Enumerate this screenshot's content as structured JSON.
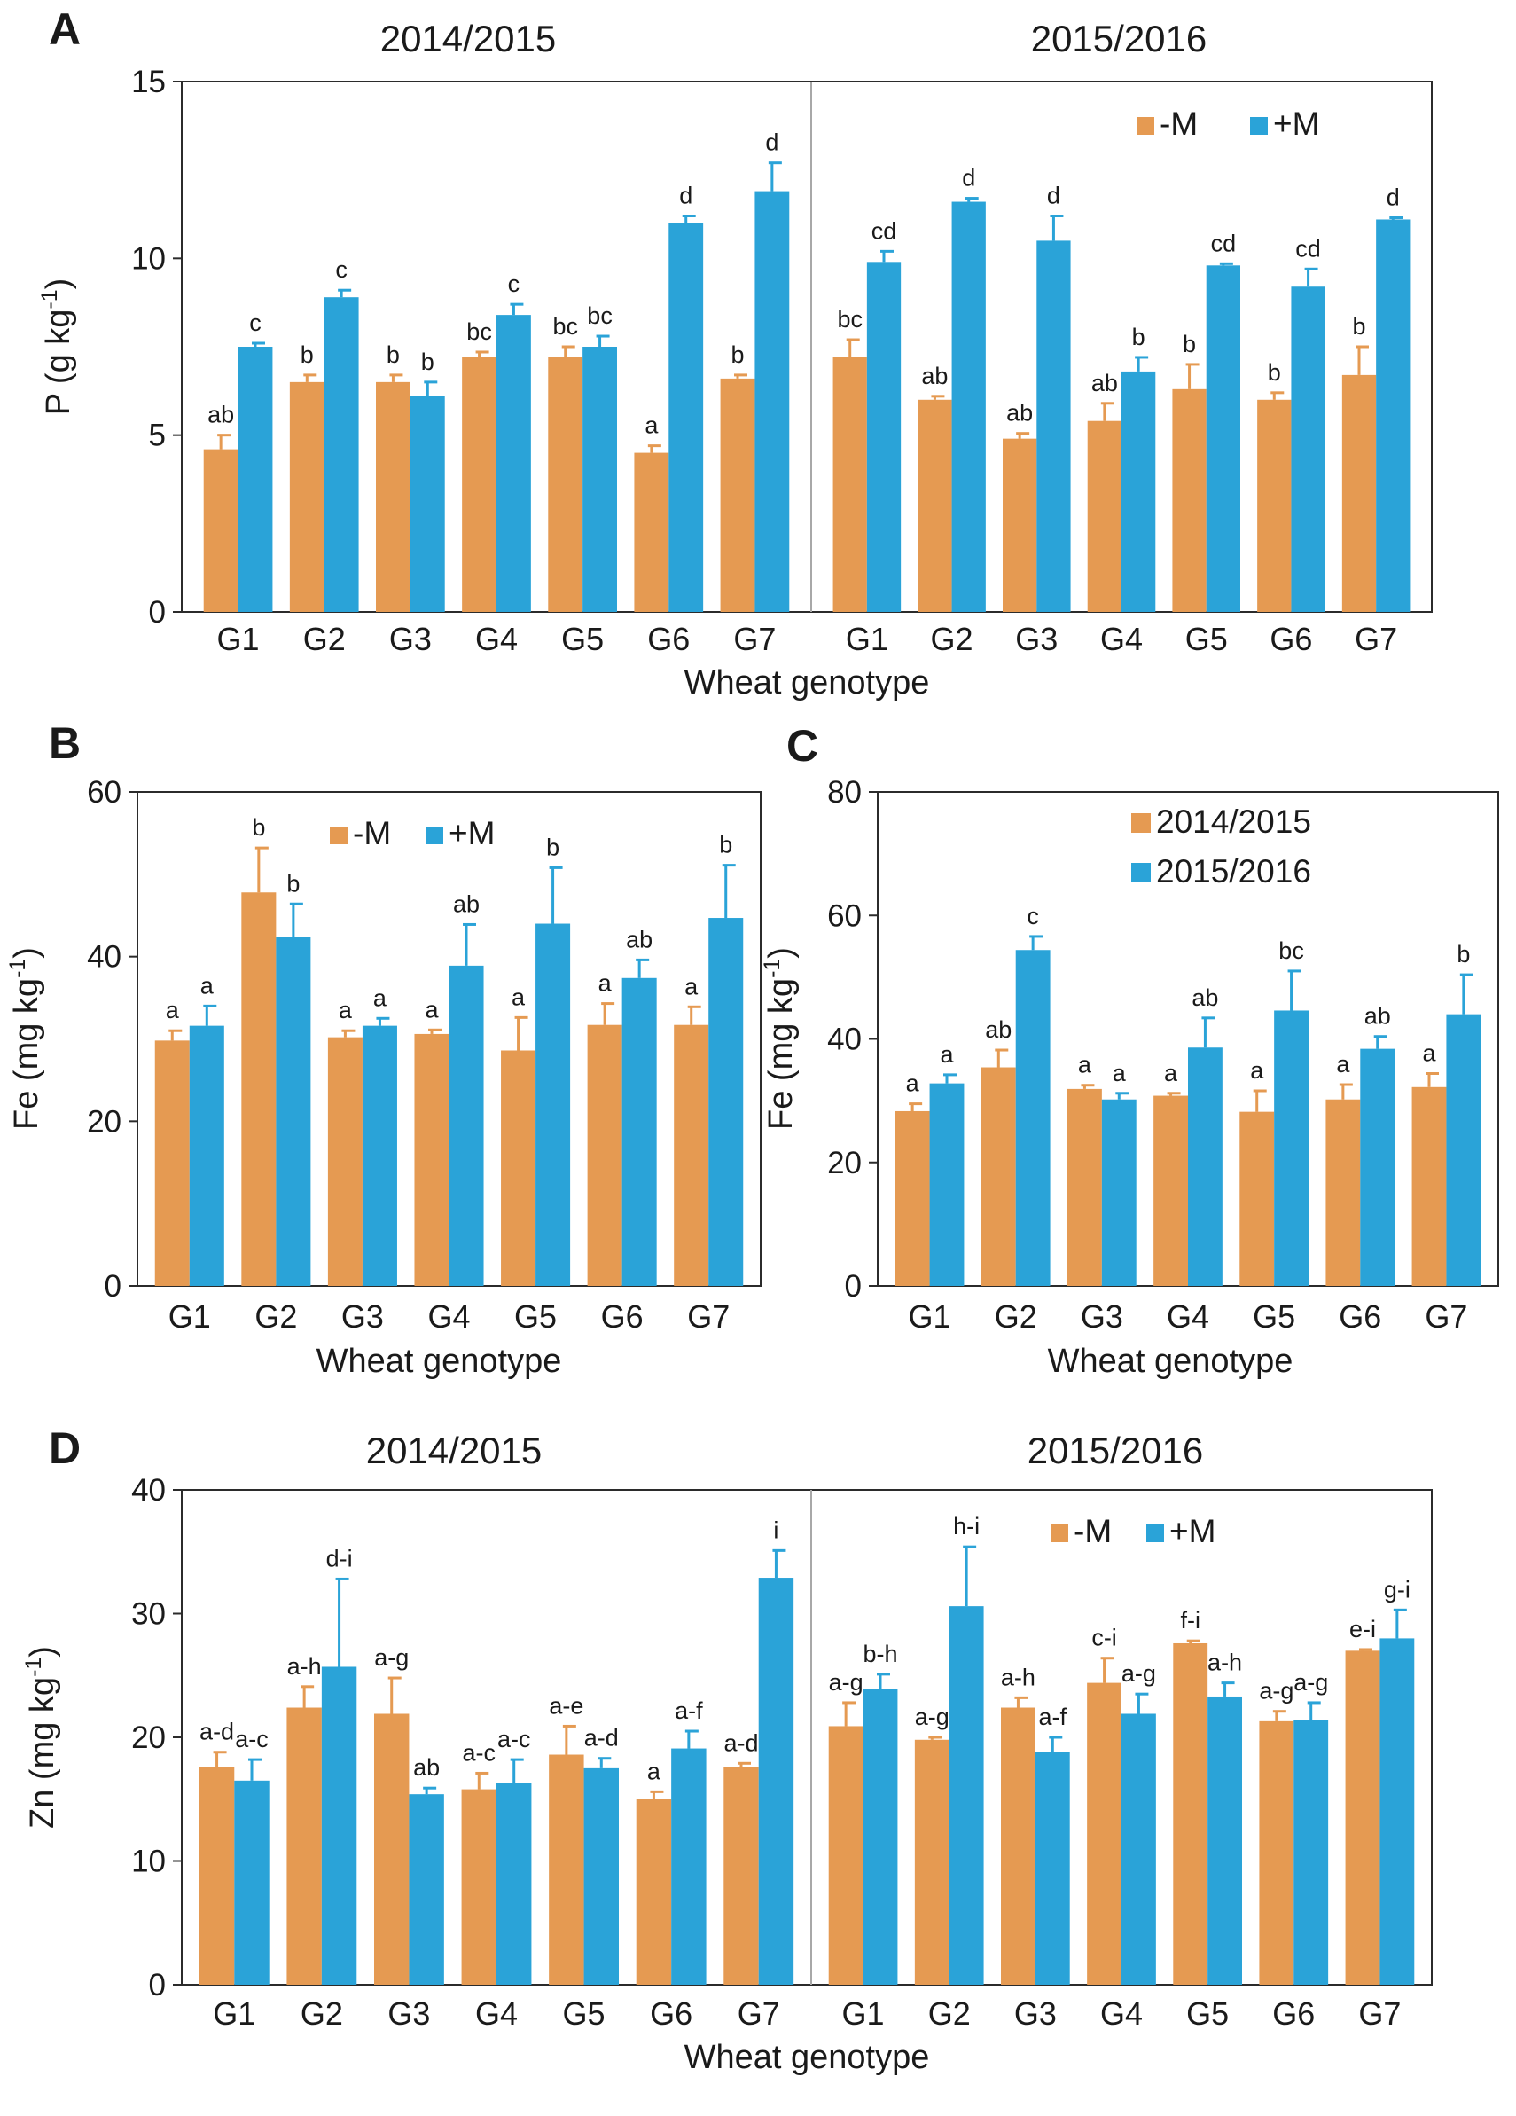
{
  "colors": {
    "minus_m": "#e59a52",
    "plus_m": "#2aa3d8",
    "axis": "#2b2b2b",
    "divider": "#a8a8a8"
  },
  "chart_data": [
    {
      "id": "A",
      "type": "bar",
      "panel_label": "A",
      "ylabel_main": "P (g kg",
      "ylabel_sup": "-1",
      "ylabel_tail": ")",
      "xlabel": "Wheat genotype",
      "ylim": [
        0,
        15
      ],
      "yticks": [
        "0",
        "5",
        "10",
        "15"
      ],
      "legend": "top-right",
      "legend_labels": [
        "-M",
        "+M"
      ],
      "groups": [
        {
          "subtitle": "2014/2015",
          "categories": [
            "G1",
            "G2",
            "G3",
            "G4",
            "G5",
            "G6",
            "G7"
          ],
          "series": [
            {
              "name": "-M",
              "values": [
                4.6,
                6.5,
                6.5,
                7.2,
                7.2,
                4.5,
                6.6
              ],
              "errors": [
                0.4,
                0.2,
                0.2,
                0.15,
                0.3,
                0.2,
                0.1
              ],
              "labels": [
                "ab",
                "b",
                "b",
                "bc",
                "bc",
                "a",
                "b"
              ]
            },
            {
              "name": "+M",
              "values": [
                7.5,
                8.9,
                6.1,
                8.4,
                7.5,
                11.0,
                11.9
              ],
              "errors": [
                0.1,
                0.2,
                0.4,
                0.3,
                0.3,
                0.2,
                0.8
              ],
              "labels": [
                "c",
                "c",
                "b",
                "c",
                "bc",
                "d",
                "d"
              ]
            }
          ]
        },
        {
          "subtitle": "2015/2016",
          "categories": [
            "G1",
            "G2",
            "G3",
            "G4",
            "G5",
            "G6",
            "G7"
          ],
          "series": [
            {
              "name": "-M",
              "values": [
                7.2,
                6.0,
                4.9,
                5.4,
                6.3,
                6.0,
                6.7
              ],
              "errors": [
                0.5,
                0.1,
                0.15,
                0.5,
                0.7,
                0.2,
                0.8
              ],
              "labels": [
                "bc",
                "ab",
                "ab",
                "ab",
                "b",
                "b",
                "b"
              ]
            },
            {
              "name": "+M",
              "values": [
                9.9,
                11.6,
                10.5,
                6.8,
                9.8,
                9.2,
                11.1
              ],
              "errors": [
                0.3,
                0.1,
                0.7,
                0.4,
                0.05,
                0.5,
                0.05
              ],
              "labels": [
                "cd",
                "d",
                "d",
                "b",
                "cd",
                "cd",
                "d"
              ]
            }
          ]
        }
      ]
    },
    {
      "id": "B",
      "type": "bar",
      "panel_label": "B",
      "ylabel_main": "Fe (mg kg",
      "ylabel_sup": "-1",
      "ylabel_tail": ")",
      "xlabel": "Wheat genotype",
      "ylim": [
        0,
        60
      ],
      "yticks": [
        "0",
        "20",
        "40",
        "60"
      ],
      "legend": "top-center",
      "legend_labels": [
        "-M",
        "+M"
      ],
      "groups": [
        {
          "subtitle": "",
          "categories": [
            "G1",
            "G2",
            "G3",
            "G4",
            "G5",
            "G6",
            "G7"
          ],
          "series": [
            {
              "name": "-M",
              "values": [
                29.8,
                47.8,
                30.2,
                30.6,
                28.6,
                31.7,
                31.7
              ],
              "errors": [
                1.2,
                5.4,
                0.8,
                0.5,
                4.0,
                2.6,
                2.2
              ],
              "labels": [
                "a",
                "b",
                "a",
                "a",
                "a",
                "a",
                "a"
              ]
            },
            {
              "name": "+M",
              "values": [
                31.6,
                42.4,
                31.6,
                38.9,
                44.0,
                37.4,
                44.7
              ],
              "errors": [
                2.4,
                4.0,
                0.9,
                5.0,
                6.8,
                2.2,
                6.4
              ],
              "labels": [
                "a",
                "b",
                "a",
                "ab",
                "b",
                "ab",
                "b"
              ]
            }
          ]
        }
      ]
    },
    {
      "id": "C",
      "type": "bar",
      "panel_label": "C",
      "ylabel_main": "Fe (mg kg",
      "ylabel_sup": "-1",
      "ylabel_tail": ")",
      "xlabel": "Wheat genotype",
      "ylim": [
        0,
        80
      ],
      "yticks": [
        "0",
        "20",
        "40",
        "60",
        "80"
      ],
      "legend": "top-center",
      "legend_labels": [
        "2014/2015",
        "2015/2016"
      ],
      "groups": [
        {
          "subtitle": "",
          "categories": [
            "G1",
            "G2",
            "G3",
            "G4",
            "G5",
            "G6",
            "G7"
          ],
          "series": [
            {
              "name": "2014/2015",
              "values": [
                28.3,
                35.4,
                31.9,
                30.8,
                28.2,
                30.2,
                32.2
              ],
              "errors": [
                1.2,
                2.8,
                0.6,
                0.4,
                3.4,
                2.4,
                2.2
              ],
              "labels": [
                "a",
                "ab",
                "a",
                "a",
                "a",
                "a",
                "a"
              ]
            },
            {
              "name": "2015/2016",
              "values": [
                32.8,
                54.4,
                30.2,
                38.6,
                44.6,
                38.4,
                44.0
              ],
              "errors": [
                1.4,
                2.2,
                1.0,
                4.8,
                6.4,
                2.0,
                6.4
              ],
              "labels": [
                "a",
                "c",
                "a",
                "ab",
                "bc",
                "ab",
                "b"
              ]
            }
          ]
        }
      ]
    },
    {
      "id": "D",
      "type": "bar",
      "panel_label": "D",
      "ylabel_main": "Zn (mg kg",
      "ylabel_sup": "-1",
      "ylabel_tail": ")",
      "xlabel": "Wheat genotype",
      "ylim": [
        0,
        40
      ],
      "yticks": [
        "0",
        "10",
        "20",
        "30",
        "40"
      ],
      "legend": "top-right",
      "legend_labels": [
        "-M",
        "+M"
      ],
      "groups": [
        {
          "subtitle": "2014/2015",
          "categories": [
            "G1",
            "G2",
            "G3",
            "G4",
            "G5",
            "G6",
            "G7"
          ],
          "series": [
            {
              "name": "-M",
              "values": [
                17.6,
                22.4,
                21.9,
                15.8,
                18.6,
                15.0,
                17.6
              ],
              "errors": [
                1.2,
                1.7,
                2.9,
                1.3,
                2.3,
                0.6,
                0.3
              ],
              "labels": [
                "a-d",
                "a-h",
                "a-g",
                "a-c",
                "a-e",
                "a",
                "a-d"
              ]
            },
            {
              "name": "+M",
              "values": [
                16.5,
                25.7,
                15.4,
                16.3,
                17.5,
                19.1,
                32.9
              ],
              "errors": [
                1.7,
                7.1,
                0.5,
                1.9,
                0.8,
                1.4,
                2.2
              ],
              "labels": [
                "a-c",
                "d-i",
                "ab",
                "a-c",
                "a-d",
                "a-f",
                "i"
              ]
            }
          ]
        },
        {
          "subtitle": "2015/2016",
          "categories": [
            "G1",
            "G2",
            "G3",
            "G4",
            "G5",
            "G6",
            "G7"
          ],
          "series": [
            {
              "name": "-M",
              "values": [
                20.9,
                19.8,
                22.4,
                24.4,
                27.6,
                21.3,
                27.0
              ],
              "errors": [
                1.9,
                0.2,
                0.8,
                2.0,
                0.2,
                0.8,
                0.1
              ],
              "labels": [
                "a-g",
                "a-g",
                "a-h",
                "c-i",
                "f-i",
                "a-g",
                "e-i"
              ]
            },
            {
              "name": "+M",
              "values": [
                23.9,
                30.6,
                18.8,
                21.9,
                23.3,
                21.4,
                28.0
              ],
              "errors": [
                1.2,
                4.8,
                1.2,
                1.6,
                1.1,
                1.4,
                2.3
              ],
              "labels": [
                "b-h",
                "h-i",
                "a-f",
                "a-g",
                "a-h",
                "a-g",
                "g-i"
              ]
            }
          ]
        }
      ]
    }
  ]
}
